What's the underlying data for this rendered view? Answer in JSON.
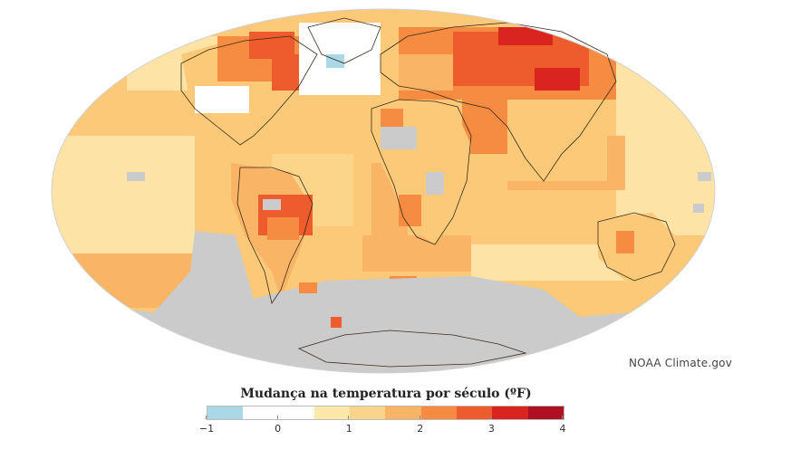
{
  "credit": "NOAA Climate.gov",
  "legend": {
    "title": "Mudança na temperatura por século (ºF)",
    "colors": [
      "#aad8e6",
      "#ffffff",
      "#ffffff",
      "#fde7a9",
      "#fcd48a",
      "#f9b565",
      "#f68b42",
      "#ee5b2c",
      "#d9241f",
      "#b01024"
    ],
    "no_data_color": "#cbcbcb",
    "ticks": [
      "−1",
      "0",
      "1",
      "2",
      "3",
      "4"
    ],
    "tick_values": [
      -1,
      0,
      1,
      2,
      3,
      4
    ]
  },
  "map": {
    "projection": "Mollweide (world)",
    "description_layers": [
      "ocean-warming",
      "land-warming",
      "no-data-antarctica",
      "no-data-arctic"
    ]
  }
}
